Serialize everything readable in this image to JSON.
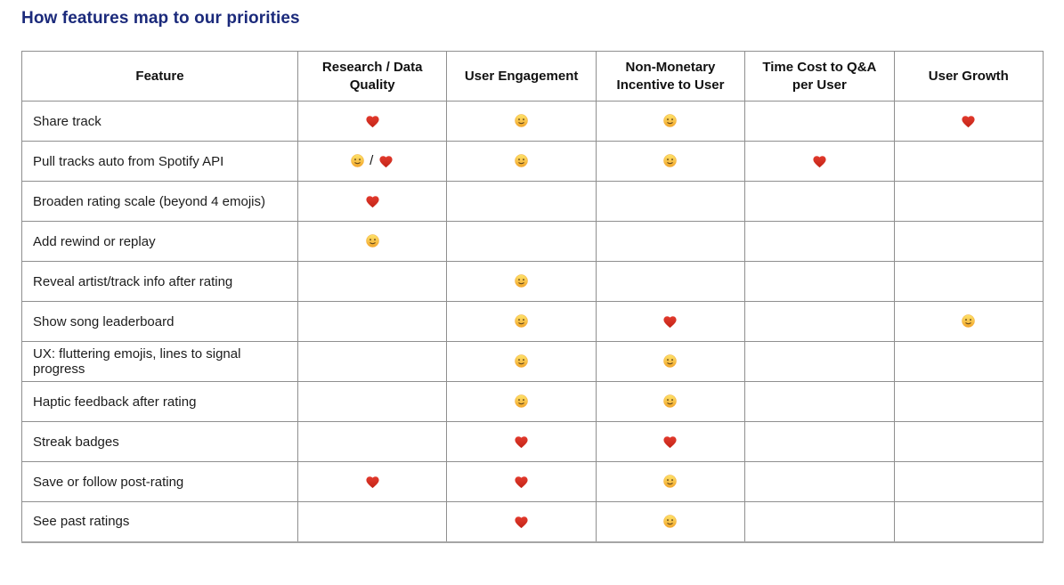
{
  "page": {
    "title": "How features map to our priorities",
    "title_color": "#1b2a7b"
  },
  "colors": {
    "heart": "#e23a2d",
    "heart_dark": "#c32417",
    "smiley": "#fbc93d",
    "smiley_light": "#fde36a",
    "smiley_dark": "#f3a62c",
    "smiley_face": "#67491a",
    "border": "#8f8f8f"
  },
  "icons": {
    "heart": "red-heart-emoji",
    "smiley": "slightly-smiling-face-emoji"
  },
  "table": {
    "cell_separator": "/",
    "columns": [
      "Feature",
      "Research / Data Quality",
      "User Engagement",
      "Non-Monetary Incentive to User",
      "Time Cost to Q&A per User",
      "User Growth"
    ],
    "rows": [
      {
        "feature": "Share track",
        "cells": [
          [
            "heart"
          ],
          [
            "smiley"
          ],
          [
            "smiley"
          ],
          [],
          [
            "heart"
          ]
        ]
      },
      {
        "feature": "Pull tracks auto from Spotify API",
        "cells": [
          [
            "smiley",
            "heart"
          ],
          [
            "smiley"
          ],
          [
            "smiley"
          ],
          [
            "heart"
          ],
          []
        ]
      },
      {
        "feature": "Broaden rating scale (beyond 4 emojis)",
        "cells": [
          [
            "heart"
          ],
          [],
          [],
          [],
          []
        ]
      },
      {
        "feature": "Add rewind or replay",
        "cells": [
          [
            "smiley"
          ],
          [],
          [],
          [],
          []
        ]
      },
      {
        "feature": "Reveal artist/track info after rating",
        "cells": [
          [],
          [
            "smiley"
          ],
          [],
          [],
          []
        ]
      },
      {
        "feature": "Show song leaderboard",
        "cells": [
          [],
          [
            "smiley"
          ],
          [
            "heart"
          ],
          [],
          [
            "smiley"
          ]
        ]
      },
      {
        "feature": "UX: fluttering emojis, lines to signal progress",
        "cells": [
          [],
          [
            "smiley"
          ],
          [
            "smiley"
          ],
          [],
          []
        ]
      },
      {
        "feature": "Haptic feedback after rating",
        "cells": [
          [],
          [
            "smiley"
          ],
          [
            "smiley"
          ],
          [],
          []
        ]
      },
      {
        "feature": "Streak badges",
        "cells": [
          [],
          [
            "heart"
          ],
          [
            "heart"
          ],
          [],
          []
        ]
      },
      {
        "feature": "Save or follow post-rating",
        "cells": [
          [
            "heart"
          ],
          [
            "heart"
          ],
          [
            "smiley"
          ],
          [],
          []
        ]
      },
      {
        "feature": "See past ratings",
        "cells": [
          [],
          [
            "heart"
          ],
          [
            "smiley"
          ],
          [],
          []
        ]
      }
    ]
  }
}
